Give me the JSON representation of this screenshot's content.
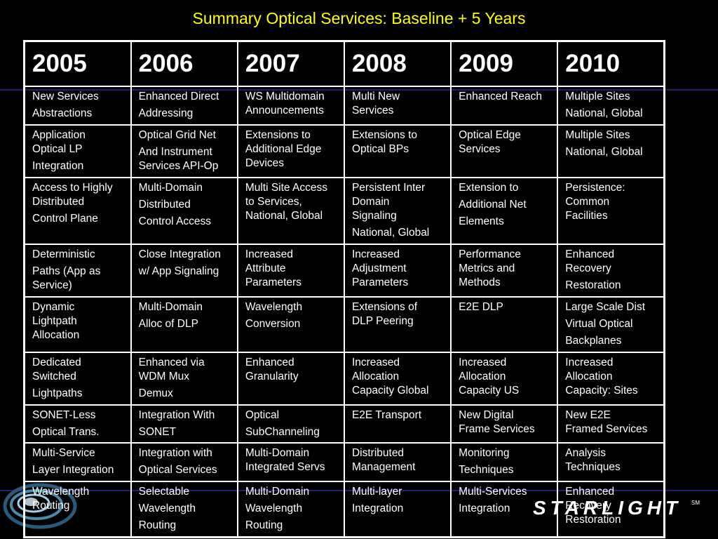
{
  "title": "Summary Optical Services: Baseline + 5 Years",
  "years": [
    "2005",
    "2006",
    "2007",
    "2008",
    "2009",
    "2010"
  ],
  "rows": [
    [
      [
        "New Services",
        "Abstractions"
      ],
      [
        "Enhanced Direct",
        "Addressing"
      ],
      [
        "WS Multidomain",
        "Announcements"
      ],
      [
        "Multi New",
        "Services"
      ],
      [
        "Enhanced Reach"
      ],
      [
        "Multiple Sites",
        "National, Global"
      ]
    ],
    [
      [
        "Application",
        "Optical LP",
        "Integration"
      ],
      [
        "Optical Grid Net",
        "And Instrument",
        "Services API-Op"
      ],
      [
        "Extensions to",
        "Additional Edge",
        "Devices"
      ],
      [
        "Extensions to",
        "Optical BPs"
      ],
      [
        "Optical Edge",
        "Services"
      ],
      [
        "Multiple Sites",
        "National, Global"
      ]
    ],
    [
      [
        "Access to Highly",
        "Distributed",
        "Control Plane"
      ],
      [
        "Multi-Domain",
        "Distributed",
        "Control Access"
      ],
      [
        "Multi Site Access",
        "to Services,",
        "National, Global"
      ],
      [
        "Persistent Inter",
        "Domain",
        "Signaling",
        "National, Global"
      ],
      [
        "Extension to",
        "Additional Net",
        "Elements"
      ],
      [
        "Persistence:",
        "Common",
        "Facilities"
      ]
    ],
    [
      [
        "Deterministic",
        "Paths (App as",
        "Service)"
      ],
      [
        "Close Integration",
        "w/ App Signaling"
      ],
      [
        "Increased",
        "Attribute",
        "Parameters"
      ],
      [
        "Increased",
        "Adjustment",
        "Parameters"
      ],
      [
        "Performance",
        "Metrics and",
        "Methods"
      ],
      [
        "Enhanced",
        "Recovery",
        "Restoration"
      ]
    ],
    [
      [
        "Dynamic",
        "Lightpath",
        "Allocation"
      ],
      [
        "Multi-Domain",
        "Alloc of DLP"
      ],
      [
        "Wavelength",
        "Conversion"
      ],
      [
        "Extensions of",
        "DLP Peering"
      ],
      [
        "E2E DLP"
      ],
      [
        "Large Scale Dist",
        "Virtual  Optical",
        "Backplanes"
      ]
    ],
    [
      [
        "Dedicated",
        "Switched",
        "Lightpaths"
      ],
      [
        "Enhanced via",
        "WDM Mux",
        "Demux"
      ],
      [
        "Enhanced",
        "Granularity"
      ],
      [
        "Increased",
        "Allocation",
        "Capacity Global"
      ],
      [
        "Increased",
        "Allocation",
        "Capacity US"
      ],
      [
        "Increased",
        "Allocation",
        "Capacity: Sites"
      ]
    ],
    [
      [
        "SONET-Less",
        "Optical Trans."
      ],
      [
        "Integration With",
        "SONET"
      ],
      [
        "Optical",
        "SubChanneling"
      ],
      [
        "E2E Transport"
      ],
      [
        "New Digital",
        "Frame Services"
      ],
      [
        "New E2E",
        "Framed Services"
      ]
    ],
    [
      [
        "Multi-Service",
        "Layer Integration"
      ],
      [
        "Integration with",
        "Optical Services"
      ],
      [
        "Multi-Domain",
        "Integrated Servs"
      ],
      [
        "Distributed",
        "Management"
      ],
      [
        "Monitoring",
        "Techniques"
      ],
      [
        "Analysis",
        "Techniques"
      ]
    ],
    [
      [
        "Wavelength",
        "Routing"
      ],
      [
        "Selectable",
        "Wavelength",
        "Routing"
      ],
      [
        "Multi-Domain",
        "Wavelength",
        "Routing"
      ],
      [
        "Multi-layer",
        "Integration"
      ],
      [
        "Multi-Services",
        "Integration"
      ],
      [
        "Enhanced",
        "Recovery",
        "Restoration"
      ]
    ]
  ],
  "gaps": [
    [
      [
        1
      ],
      [
        1
      ],
      [],
      [],
      [],
      [
        1
      ]
    ],
    [
      [
        2
      ],
      [
        1
      ],
      [],
      [],
      [],
      [
        1
      ]
    ],
    [
      [
        2
      ],
      [
        1,
        2
      ],
      [],
      [
        3
      ],
      [
        1,
        2
      ],
      []
    ],
    [
      [
        1
      ],
      [
        1
      ],
      [],
      [],
      [],
      [
        2
      ]
    ],
    [
      [],
      [
        1
      ],
      [
        1
      ],
      [],
      [],
      [
        1,
        2
      ]
    ],
    [
      [
        2
      ],
      [
        2
      ],
      [],
      [],
      [],
      []
    ],
    [
      [
        1
      ],
      [
        1
      ],
      [
        1
      ],
      [],
      [],
      []
    ],
    [
      [
        1
      ],
      [
        1
      ],
      [],
      [],
      [
        1
      ],
      []
    ],
    [
      [],
      [
        1,
        2
      ],
      [
        1,
        2
      ],
      [
        1
      ],
      [
        1
      ],
      []
    ]
  ],
  "logo": {
    "text": "STARLIGHT",
    "mark": "SM"
  },
  "colors": {
    "title": "#ffff00",
    "background": "#000000",
    "accent_line": "#1d1f7a"
  }
}
